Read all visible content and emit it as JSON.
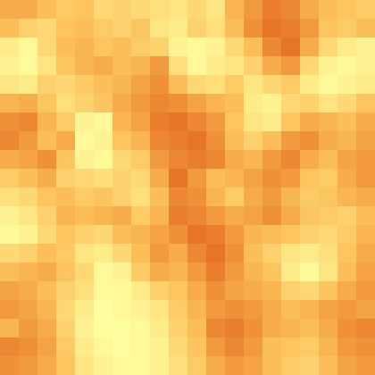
{
  "chart_data": {
    "type": "heatmap",
    "tick_labels": false,
    "zlim": [
      0,
      1
    ],
    "cells": [
      [
        0.6,
        0.6,
        0.5,
        0.4,
        0.45,
        0.3,
        0.35,
        0.3,
        0.25,
        0.2,
        0.3,
        0.2,
        0.55,
        0.7,
        0.85,
        0.8,
        0.6,
        0.5,
        0.45,
        0.4
      ],
      [
        0.5,
        0.35,
        0.3,
        0.45,
        0.5,
        0.4,
        0.35,
        0.45,
        0.2,
        0.15,
        0.35,
        0.25,
        0.5,
        0.75,
        0.9,
        0.85,
        0.7,
        0.45,
        0.4,
        0.5
      ],
      [
        0.15,
        0.05,
        0.3,
        0.5,
        0.55,
        0.45,
        0.5,
        0.4,
        0.35,
        0.1,
        0.05,
        0.1,
        0.3,
        0.5,
        0.8,
        0.9,
        0.6,
        0.3,
        0.15,
        0.1
      ],
      [
        0.1,
        0.05,
        0.2,
        0.45,
        0.55,
        0.6,
        0.5,
        0.55,
        0.7,
        0.25,
        0.05,
        0.15,
        0.2,
        0.35,
        0.6,
        0.7,
        0.3,
        0.1,
        0.05,
        0.1
      ],
      [
        0.2,
        0.15,
        0.35,
        0.3,
        0.4,
        0.5,
        0.55,
        0.65,
        0.75,
        0.5,
        0.3,
        0.25,
        0.4,
        0.2,
        0.3,
        0.4,
        0.15,
        0.05,
        0.1,
        0.15
      ],
      [
        0.55,
        0.6,
        0.45,
        0.25,
        0.35,
        0.45,
        0.6,
        0.7,
        0.8,
        0.75,
        0.65,
        0.55,
        0.5,
        0.15,
        0.1,
        0.3,
        0.35,
        0.2,
        0.3,
        0.45
      ],
      [
        0.75,
        0.8,
        0.55,
        0.4,
        0.1,
        0.05,
        0.55,
        0.65,
        0.85,
        0.9,
        0.8,
        0.7,
        0.45,
        0.2,
        0.15,
        0.45,
        0.6,
        0.55,
        0.5,
        0.6
      ],
      [
        0.8,
        0.7,
        0.5,
        0.6,
        0.05,
        0.1,
        0.45,
        0.55,
        0.8,
        0.85,
        0.9,
        0.75,
        0.5,
        0.35,
        0.5,
        0.7,
        0.75,
        0.6,
        0.55,
        0.65
      ],
      [
        0.6,
        0.65,
        0.75,
        0.45,
        0.1,
        0.05,
        0.3,
        0.4,
        0.7,
        0.8,
        0.85,
        0.8,
        0.6,
        0.55,
        0.7,
        0.8,
        0.6,
        0.5,
        0.65,
        0.7
      ],
      [
        0.4,
        0.5,
        0.6,
        0.35,
        0.3,
        0.25,
        0.35,
        0.3,
        0.6,
        0.9,
        0.7,
        0.5,
        0.55,
        0.65,
        0.75,
        0.7,
        0.45,
        0.4,
        0.6,
        0.7
      ],
      [
        0.25,
        0.3,
        0.45,
        0.5,
        0.4,
        0.45,
        0.35,
        0.25,
        0.5,
        0.8,
        0.75,
        0.55,
        0.4,
        0.6,
        0.7,
        0.55,
        0.4,
        0.45,
        0.55,
        0.6
      ],
      [
        0.1,
        0.2,
        0.35,
        0.55,
        0.5,
        0.55,
        0.6,
        0.4,
        0.55,
        0.85,
        0.8,
        0.7,
        0.6,
        0.65,
        0.75,
        0.6,
        0.45,
        0.4,
        0.35,
        0.5
      ],
      [
        0.05,
        0.1,
        0.3,
        0.45,
        0.35,
        0.3,
        0.5,
        0.55,
        0.65,
        0.75,
        0.9,
        0.85,
        0.7,
        0.55,
        0.5,
        0.45,
        0.35,
        0.3,
        0.4,
        0.55
      ],
      [
        0.3,
        0.35,
        0.5,
        0.4,
        0.2,
        0.15,
        0.3,
        0.5,
        0.7,
        0.6,
        0.8,
        0.9,
        0.75,
        0.5,
        0.35,
        0.2,
        0.15,
        0.25,
        0.45,
        0.6
      ],
      [
        0.5,
        0.55,
        0.6,
        0.45,
        0.3,
        0.05,
        0.1,
        0.4,
        0.6,
        0.55,
        0.7,
        0.85,
        0.7,
        0.55,
        0.45,
        0.15,
        0.05,
        0.2,
        0.5,
        0.65
      ],
      [
        0.65,
        0.6,
        0.5,
        0.35,
        0.25,
        0.05,
        0.05,
        0.15,
        0.35,
        0.45,
        0.6,
        0.75,
        0.65,
        0.6,
        0.55,
        0.35,
        0.3,
        0.45,
        0.6,
        0.7
      ],
      [
        0.7,
        0.65,
        0.55,
        0.3,
        0.15,
        0,
        0.05,
        0.1,
        0.2,
        0.4,
        0.55,
        0.7,
        0.75,
        0.7,
        0.6,
        0.5,
        0.55,
        0.65,
        0.7,
        0.65
      ],
      [
        0.55,
        0.7,
        0.6,
        0.35,
        0.1,
        0,
        0,
        0.05,
        0.15,
        0.35,
        0.5,
        0.8,
        0.85,
        0.75,
        0.6,
        0.55,
        0.5,
        0.6,
        0.75,
        0.8
      ],
      [
        0.8,
        0.75,
        0.65,
        0.4,
        0.15,
        0.05,
        0,
        0.05,
        0.1,
        0.3,
        0.45,
        0.7,
        0.8,
        0.7,
        0.5,
        0.45,
        0.4,
        0.55,
        0.7,
        0.75
      ],
      [
        0.75,
        0.7,
        0.6,
        0.45,
        0.2,
        0.1,
        0.05,
        0.05,
        0.1,
        0.25,
        0.4,
        0.6,
        0.7,
        0.65,
        0.5,
        0.4,
        0.35,
        0.5,
        0.65,
        0.7
      ]
    ]
  }
}
